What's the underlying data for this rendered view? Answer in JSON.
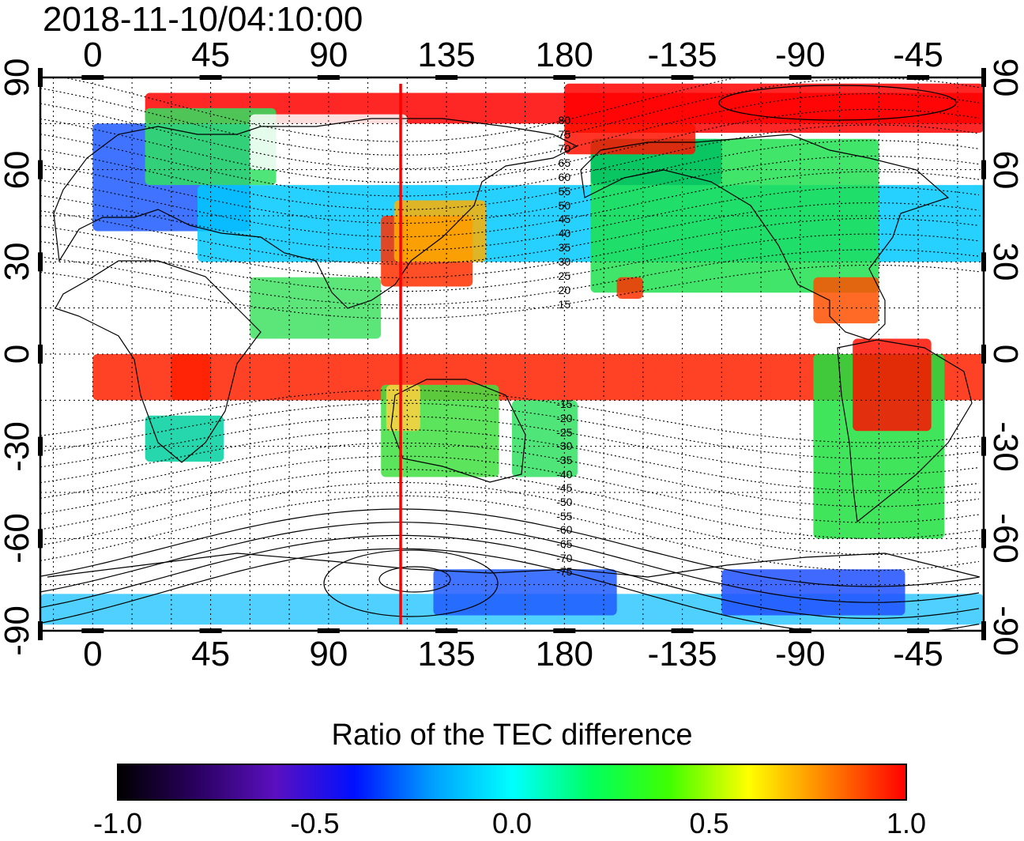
{
  "timestamp": "2018-11-10/04:10:00",
  "map": {
    "colorbar_title": "Ratio of the TEC difference",
    "colorbar_ticks": [
      "-1.0",
      "-0.5",
      "0.0",
      "0.5",
      "1.0"
    ],
    "colorbar_range": [
      -1.0,
      1.0
    ],
    "colorbar_colors": [
      "#000000",
      "#2a0060",
      "#5a10c0",
      "#0010ff",
      "#00a0ff",
      "#00ffff",
      "#00ff60",
      "#40ff00",
      "#ffff00",
      "#ff8000",
      "#ff0000"
    ],
    "top_axis_labels": [
      "0",
      "45",
      "90",
      "135",
      "180",
      "-135",
      "-90",
      "-45"
    ],
    "bottom_axis_labels": [
      "0",
      "45",
      "90",
      "135",
      "180",
      "-135",
      "-90",
      "-45"
    ],
    "left_axis_labels": [
      "90",
      "60",
      "30",
      "0",
      "-30",
      "-60",
      "-90"
    ],
    "right_axis_labels": [
      "90",
      "60",
      "30",
      "0",
      "-30",
      "-60",
      "-90"
    ],
    "longitude_ticks": [
      0,
      45,
      90,
      135,
      180,
      -135,
      -90,
      -45
    ],
    "latitude_ticks": [
      90,
      60,
      30,
      0,
      -30,
      -60,
      -90
    ],
    "longitude_range": [
      -20,
      340
    ],
    "latitude_range": [
      -90,
      90
    ],
    "magnetic_latitude_labels": {
      "north": [
        "80",
        "75",
        "70",
        "65",
        "60",
        "55",
        "50",
        "45",
        "40",
        "35",
        "30",
        "25",
        "20",
        "15"
      ],
      "south": [
        "-15",
        "-20",
        "-25",
        "-30",
        "-35",
        "-40",
        "-45",
        "-50",
        "-55",
        "-60",
        "-65",
        "-70",
        "-75"
      ]
    },
    "subsolar_longitude": 117.5,
    "marker_line_color": "#ff0000"
  }
}
